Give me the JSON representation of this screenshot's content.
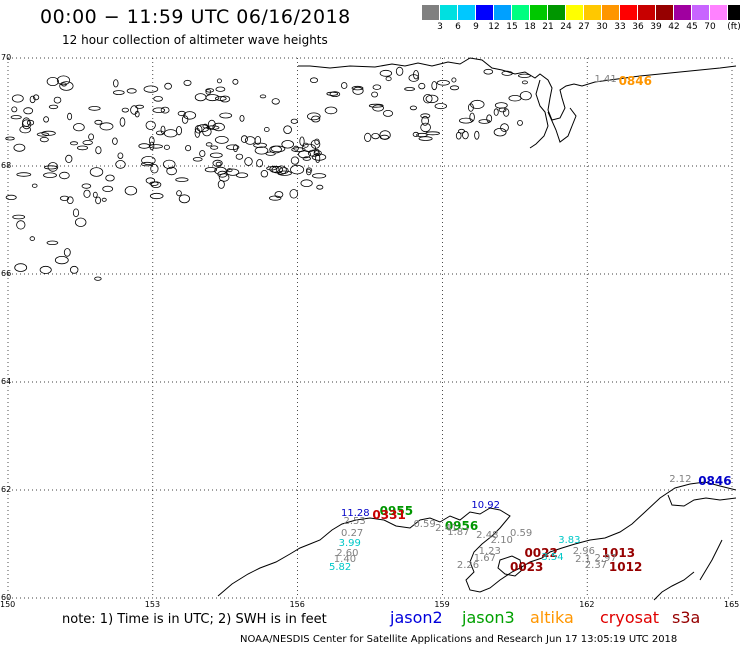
{
  "header": {
    "title": "00:00 − 11:59 UTC 06/16/2018",
    "subtitle": "12 hour collection of altimeter wave heights"
  },
  "legend": {
    "colors": [
      "#808080",
      "#00e0e0",
      "#00c8ff",
      "#0000ff",
      "#00a0ff",
      "#00ff80",
      "#00c800",
      "#009600",
      "#ffff00",
      "#ffc800",
      "#ff9600",
      "#ff0000",
      "#c80000",
      "#960000",
      "#a000a0",
      "#c864ff",
      "#ff82ff",
      "#000000"
    ],
    "labels": [
      "3",
      "6",
      "9",
      "12",
      "15",
      "18",
      "21",
      "24",
      "27",
      "30",
      "33",
      "36",
      "39",
      "42",
      "45",
      "70",
      "(ft)"
    ]
  },
  "axes": {
    "lon_ticks": [
      "150",
      "153",
      "156",
      "159",
      "162",
      "165"
    ],
    "lat_ticks": [
      "70",
      "68",
      "66",
      "64",
      "62",
      "60"
    ]
  },
  "labels": [
    {
      "text": "1.41",
      "color": "#808080",
      "lon": 162.15,
      "lat": 69.6
    },
    {
      "text": "0846",
      "color": "#ff9600",
      "lon": 162.65,
      "lat": 69.6,
      "pass": true
    },
    {
      "text": "2.12",
      "color": "#808080",
      "lon": 163.7,
      "lat": 62.18
    },
    {
      "text": "0846",
      "color": "#0000c8",
      "lon": 164.3,
      "lat": 62.18,
      "pass": true
    },
    {
      "text": "10.92",
      "color": "#0000c8",
      "lon": 159.6,
      "lat": 61.7
    },
    {
      "text": "0955",
      "color": "#009600",
      "lon": 157.7,
      "lat": 61.63,
      "pass": true
    },
    {
      "text": "11.28",
      "color": "#0000c8",
      "lon": 156.9,
      "lat": 61.56
    },
    {
      "text": "0331",
      "color": "#c80000",
      "lon": 157.55,
      "lat": 61.56,
      "pass": true
    },
    {
      "text": "2.53",
      "color": "#808080",
      "lon": 156.95,
      "lat": 61.4
    },
    {
      "text": "0.59",
      "color": "#808080",
      "lon": 158.4,
      "lat": 61.35
    },
    {
      "text": "0956",
      "color": "#009600",
      "lon": 159.05,
      "lat": 61.35,
      "pass": true
    },
    {
      "text": "2.41",
      "color": "#808080",
      "lon": 158.85,
      "lat": 61.27
    },
    {
      "text": "1.87",
      "color": "#808080",
      "lon": 159.1,
      "lat": 61.2
    },
    {
      "text": "0.27",
      "color": "#808080",
      "lon": 156.9,
      "lat": 61.19
    },
    {
      "text": "0.59",
      "color": "#808080",
      "lon": 160.4,
      "lat": 61.18
    },
    {
      "text": "2.48",
      "color": "#808080",
      "lon": 159.7,
      "lat": 61.15
    },
    {
      "text": "3.99",
      "color": "#00c8c8",
      "lon": 156.85,
      "lat": 61.0
    },
    {
      "text": "2.10",
      "color": "#808080",
      "lon": 160.0,
      "lat": 61.05
    },
    {
      "text": "3.83",
      "color": "#00c8c8",
      "lon": 161.4,
      "lat": 61.05
    },
    {
      "text": "2.60",
      "color": "#808080",
      "lon": 156.8,
      "lat": 60.81
    },
    {
      "text": "1.23",
      "color": "#808080",
      "lon": 159.75,
      "lat": 60.85
    },
    {
      "text": "0022",
      "color": "#960000",
      "lon": 160.7,
      "lat": 60.85,
      "pass": true
    },
    {
      "text": "2.96",
      "color": "#808080",
      "lon": 161.7,
      "lat": 60.85
    },
    {
      "text": "1013",
      "color": "#960000",
      "lon": 162.3,
      "lat": 60.85,
      "pass": true
    },
    {
      "text": "3.54",
      "color": "#00c8c8",
      "lon": 161.05,
      "lat": 60.75
    },
    {
      "text": "2.97",
      "color": "#808080",
      "lon": 162.15,
      "lat": 60.73
    },
    {
      "text": "1.67",
      "color": "#808080",
      "lon": 159.65,
      "lat": 60.73
    },
    {
      "text": "1.40",
      "color": "#808080",
      "lon": 156.75,
      "lat": 60.7
    },
    {
      "text": "2.1",
      "color": "#808080",
      "lon": 161.75,
      "lat": 60.7
    },
    {
      "text": "2.26",
      "color": "#808080",
      "lon": 159.3,
      "lat": 60.6
    },
    {
      "text": "0023",
      "color": "#960000",
      "lon": 160.4,
      "lat": 60.6,
      "pass": true
    },
    {
      "text": "2.37",
      "color": "#808080",
      "lon": 161.95,
      "lat": 60.6
    },
    {
      "text": "1012",
      "color": "#960000",
      "lon": 162.45,
      "lat": 60.6,
      "pass": true
    },
    {
      "text": "5.82",
      "color": "#00c8c8",
      "lon": 156.65,
      "lat": 60.56
    }
  ],
  "note": "note: 1) Time is in UTC; 2) SWH is in feet",
  "satellites": [
    {
      "name": "jason2",
      "color": "#0000dc"
    },
    {
      "name": "jason3",
      "color": "#00a000"
    },
    {
      "name": "altika",
      "color": "#ff9600"
    },
    {
      "name": "cryosat",
      "color": "#e00000"
    },
    {
      "name": "s3a",
      "color": "#960000"
    }
  ],
  "footer": "NOAA/NESDIS Center for Satellite Applications and Research    Jun 17 13:05:19 UTC 2018"
}
